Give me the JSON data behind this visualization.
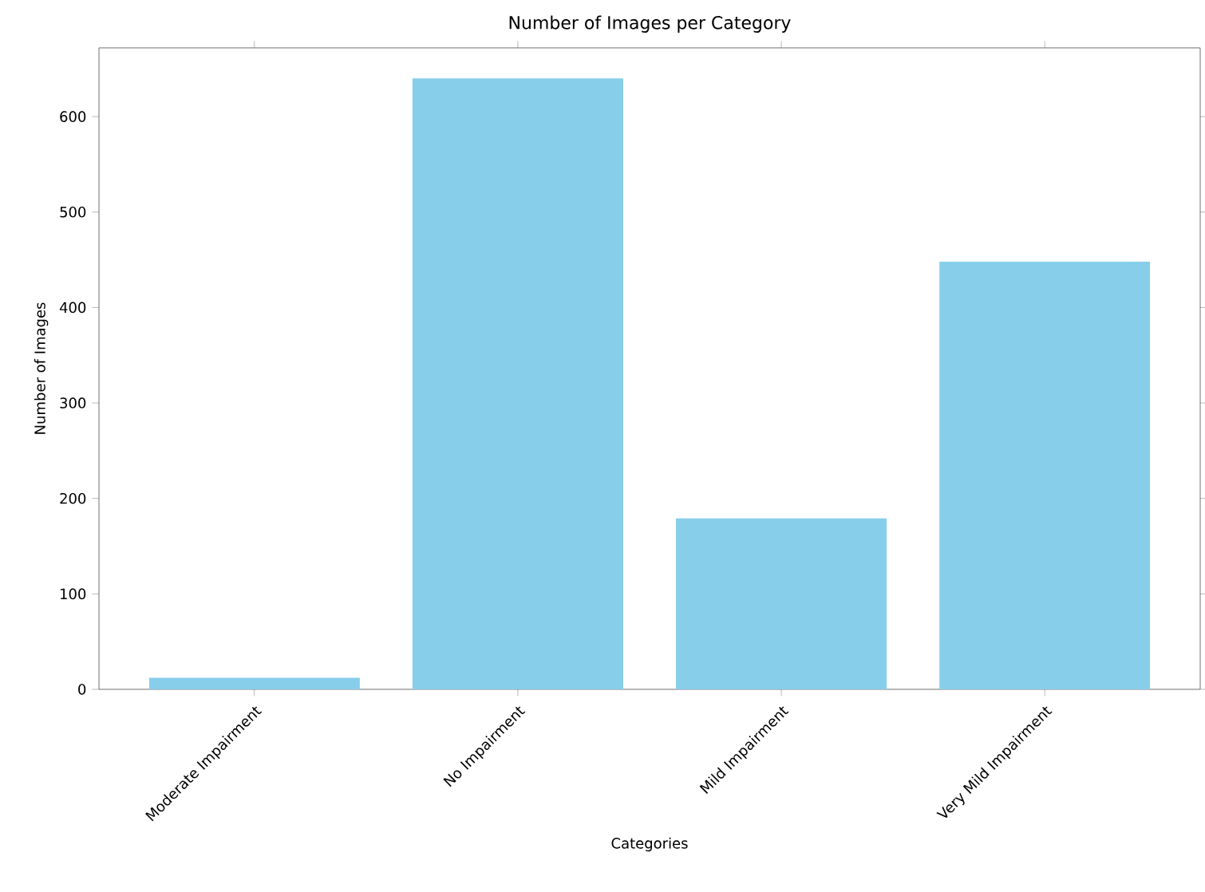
{
  "chart_data": {
    "type": "bar",
    "title": "Number of Images per Category",
    "xlabel": "Categories",
    "ylabel": "Number of Images",
    "categories": [
      "Moderate Impairment",
      "No Impairment",
      "Mild Impairment",
      "Very Mild Impairment"
    ],
    "values": [
      12,
      640,
      179,
      448
    ],
    "color": "#87ceeb",
    "ylim": [
      0,
      672
    ],
    "yticks": [
      0,
      100,
      200,
      300,
      400,
      500,
      600
    ]
  }
}
